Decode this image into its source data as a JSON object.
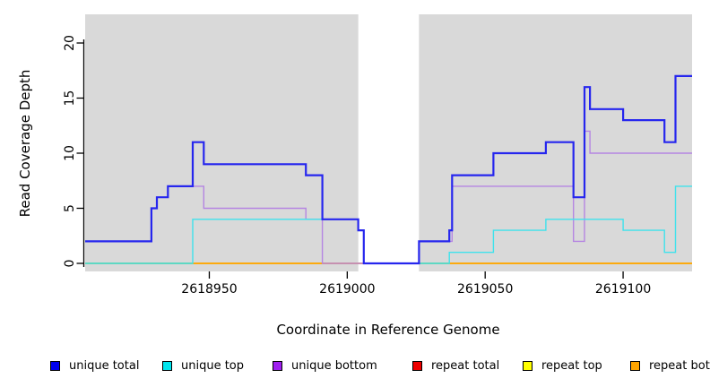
{
  "chart_data": {
    "type": "step",
    "title": "",
    "xlabel": "Coordinate in Reference Genome",
    "ylabel": "Read Coverage Depth",
    "xlim": [
      2618905,
      2619125
    ],
    "ylim": [
      0,
      22
    ],
    "x_ticks": [
      2618950,
      2619000,
      2619050,
      2619100
    ],
    "x_tick_labels": [
      "2618950",
      "2619000",
      "2619050",
      "2619100"
    ],
    "y_ticks": [
      0,
      5,
      10,
      15,
      20
    ],
    "y_tick_labels": [
      "0",
      "5",
      "10",
      "15",
      "20"
    ],
    "grid": false,
    "plot_bg_color": "#d9d9d9",
    "masked_region": {
      "from": 2619004,
      "to": 2619026,
      "color": "#ffffff"
    },
    "series": [
      {
        "name": "unique total",
        "color": "#2626ee",
        "legend_color": "#0000ee",
        "line_width": 2.2,
        "points": [
          [
            2618905,
            2
          ],
          [
            2618929,
            5
          ],
          [
            2618931,
            6
          ],
          [
            2618935,
            7
          ],
          [
            2618944,
            11
          ],
          [
            2618948,
            9
          ],
          [
            2618985,
            8
          ],
          [
            2618991,
            4
          ],
          [
            2619004,
            3
          ],
          [
            2619006,
            0
          ],
          [
            2619026,
            2
          ],
          [
            2619037,
            3
          ],
          [
            2619038,
            8
          ],
          [
            2619053,
            10
          ],
          [
            2619072,
            11
          ],
          [
            2619082,
            6
          ],
          [
            2619086,
            16
          ],
          [
            2619088,
            14
          ],
          [
            2619100,
            13
          ],
          [
            2619115,
            11
          ],
          [
            2619119,
            17
          ],
          [
            2619125,
            17
          ]
        ]
      },
      {
        "name": "unique top",
        "color": "#3fe2ec",
        "legend_color": "#00e5ee",
        "line_width": 1.4,
        "points": [
          [
            2618905,
            0
          ],
          [
            2618944,
            4
          ],
          [
            2619004,
            3
          ],
          [
            2619006,
            0
          ],
          [
            2619037,
            1
          ],
          [
            2619053,
            3
          ],
          [
            2619072,
            4
          ],
          [
            2619100,
            3
          ],
          [
            2619115,
            1
          ],
          [
            2619119,
            7
          ],
          [
            2619125,
            7
          ]
        ]
      },
      {
        "name": "unique bottom",
        "color": "#b585e2",
        "legend_color": "#a020f0",
        "line_width": 1.4,
        "points": [
          [
            2618905,
            2
          ],
          [
            2618929,
            5
          ],
          [
            2618931,
            6
          ],
          [
            2618935,
            7
          ],
          [
            2618948,
            5
          ],
          [
            2618985,
            4
          ],
          [
            2618991,
            0
          ],
          [
            2619026,
            2
          ],
          [
            2619038,
            7
          ],
          [
            2619082,
            2
          ],
          [
            2619086,
            12
          ],
          [
            2619088,
            10
          ],
          [
            2619125,
            10
          ]
        ]
      },
      {
        "name": "repeat total",
        "color": "#ee0000",
        "legend_color": "#ee0000",
        "line_width": 1.4,
        "points": [
          [
            2618905,
            0
          ],
          [
            2619125,
            0
          ]
        ]
      },
      {
        "name": "repeat top",
        "color": "#ffff00",
        "legend_color": "#ffff00",
        "line_width": 1.4,
        "points": [
          [
            2618905,
            0
          ],
          [
            2619125,
            0
          ]
        ]
      },
      {
        "name": "repeat bottom",
        "color": "#ffa500",
        "legend_color": "#ffa500",
        "line_width": 1.4,
        "points": [
          [
            2618905,
            0
          ],
          [
            2619125,
            0
          ]
        ]
      }
    ],
    "baseline_blend_segments": [
      {
        "from": 2618905,
        "to": 2618944,
        "color": "#7fc577"
      },
      {
        "from": 2619026,
        "to": 2619037,
        "color": "#7fc577"
      }
    ],
    "legend_position": "bottom"
  },
  "legend": {
    "items": [
      {
        "label": "unique total"
      },
      {
        "label": "unique top"
      },
      {
        "label": "unique bottom"
      },
      {
        "label": "repeat total"
      },
      {
        "label": "repeat top"
      },
      {
        "label": "repeat bottom"
      }
    ]
  },
  "axis_color": "#000000"
}
